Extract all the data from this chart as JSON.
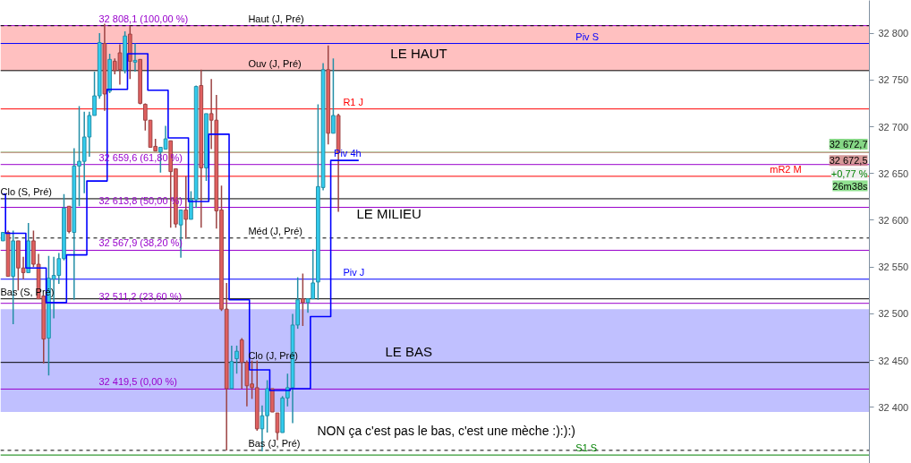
{
  "chart_data": {
    "type": "candlestick",
    "tick_labels": "y",
    "grid": false,
    "ylim": [
      32340,
      32835
    ],
    "yticks": [
      {
        "value": 32400,
        "label": "32 400"
      },
      {
        "value": 32450,
        "label": "32 450"
      },
      {
        "value": 32500,
        "label": "32 500"
      },
      {
        "value": 32550,
        "label": "32 550"
      },
      {
        "value": 32600,
        "label": "32 600"
      },
      {
        "value": 32650,
        "label": "32 650"
      },
      {
        "value": 32700,
        "label": "32 700"
      },
      {
        "value": 32750,
        "label": "32 750"
      },
      {
        "value": 32800,
        "label": "32 800"
      }
    ],
    "categories": [
      null,
      null,
      null,
      null,
      null,
      null,
      null,
      null,
      null,
      null,
      null,
      null,
      null,
      null,
      null,
      null,
      null,
      null,
      null,
      null,
      null,
      null,
      null,
      null,
      null,
      null,
      null,
      null,
      null,
      null,
      null,
      null,
      null,
      null,
      null,
      null,
      null,
      null,
      null,
      null,
      null,
      null,
      null,
      null,
      null,
      null,
      null,
      null,
      null,
      null,
      null,
      null,
      null,
      null,
      null,
      null,
      null,
      null,
      null,
      null,
      null,
      null,
      null,
      null,
      null,
      null,
      null,
      null,
      null,
      null,
      null,
      null,
      null,
      null,
      null,
      null,
      null,
      null,
      null,
      null,
      null,
      null,
      null,
      null,
      null,
      null,
      null,
      null,
      null,
      null,
      null,
      null,
      null,
      null,
      null,
      null,
      null,
      null,
      null,
      null,
      null,
      null,
      null,
      null,
      null,
      null,
      null,
      null,
      null,
      null,
      null,
      null,
      null,
      null,
      null,
      null,
      null,
      null,
      null,
      null,
      null,
      null,
      null,
      null,
      null,
      null,
      null,
      null,
      null,
      null,
      null,
      null,
      null,
      null,
      null,
      null,
      null,
      null,
      null,
      null,
      null,
      null,
      null,
      null,
      null,
      null,
      null,
      null,
      null,
      null,
      null,
      null,
      null,
      null,
      null,
      null,
      null,
      null,
      null,
      null,
      null,
      null,
      null,
      null,
      null,
      null,
      null,
      null,
      null,
      null,
      null
    ],
    "ohlc": [
      [
        32578,
        32587,
        32578,
        32587
      ],
      [
        32587,
        32589,
        32540,
        32540
      ],
      [
        32540,
        32589,
        32489,
        32578
      ],
      [
        32578,
        32578,
        32525,
        32549
      ],
      [
        32549,
        32561,
        32537,
        32544
      ],
      [
        32544,
        32597,
        32544,
        32578
      ],
      [
        32578,
        32589,
        32550,
        32553
      ],
      [
        32553,
        32564,
        32516,
        32516
      ],
      [
        32519,
        32519,
        32447,
        32473
      ],
      [
        32474,
        32562,
        32434,
        32538
      ],
      [
        32537,
        32561,
        32495,
        32541
      ],
      [
        32541,
        32565,
        32532,
        32559
      ],
      [
        32559,
        32628,
        32557,
        32613
      ],
      [
        32615,
        32615,
        32586,
        32588
      ],
      [
        32587,
        32677,
        32515,
        32658
      ],
      [
        32658,
        32722,
        32615,
        32663
      ],
      [
        32663,
        32716,
        32629,
        32689
      ],
      [
        32689,
        32716,
        32668,
        32712
      ],
      [
        32712,
        32759,
        32712,
        32733
      ],
      [
        32733,
        32800,
        32730,
        32790
      ],
      [
        32789,
        32810,
        32717,
        32735
      ],
      [
        32738,
        32778,
        32736,
        32772
      ],
      [
        32770,
        32773,
        32756,
        32760
      ],
      [
        32779,
        32788,
        32745,
        32761
      ],
      [
        32760,
        32802,
        32757,
        32797
      ],
      [
        32799,
        32808,
        32751,
        32770
      ],
      [
        32769,
        32789,
        32759,
        32771
      ],
      [
        32772,
        32772,
        32724,
        32725
      ],
      [
        32724,
        32725,
        32696,
        32707
      ],
      [
        32707,
        32707,
        32678,
        32678
      ],
      [
        32679,
        32687,
        32674,
        32674
      ],
      [
        32673,
        32678,
        32651,
        32678
      ],
      [
        32676,
        32701,
        32676,
        32687
      ],
      [
        32685,
        32685,
        32592,
        32652
      ],
      [
        32655,
        32655,
        32592,
        32596
      ],
      [
        32595,
        32611,
        32560,
        32611
      ],
      [
        32611,
        32647,
        32580,
        32601
      ],
      [
        32601,
        32631,
        32601,
        32622
      ],
      [
        32622,
        32744,
        32613,
        32743
      ],
      [
        32744,
        32761,
        32592,
        32656
      ],
      [
        32656,
        32714,
        32642,
        32714
      ],
      [
        32714,
        32751,
        32676,
        32707
      ],
      [
        32707,
        32734,
        32591,
        32610
      ],
      [
        32611,
        32637,
        32503,
        32505
      ],
      [
        32505,
        32533,
        32354,
        32420
      ],
      [
        32420,
        32466,
        32420,
        32449
      ],
      [
        32452,
        32466,
        32436,
        32460
      ],
      [
        32472,
        32474,
        32420,
        32448
      ],
      [
        32448,
        32450,
        32401,
        32423
      ],
      [
        32425,
        32450,
        32409,
        32421
      ],
      [
        32421,
        32450,
        32375,
        32377
      ],
      [
        32377,
        32402,
        32353,
        32391
      ],
      [
        32391,
        32429,
        32373,
        32420
      ],
      [
        32420,
        32420,
        32395,
        32395
      ],
      [
        32394,
        32394,
        32365,
        32373
      ],
      [
        32373,
        32412,
        32373,
        32410
      ],
      [
        32410,
        32436,
        32401,
        32421
      ],
      [
        32421,
        32500,
        32383,
        32488
      ],
      [
        32488,
        32539,
        32484,
        32515
      ],
      [
        32516,
        32543,
        32487,
        32512
      ],
      [
        32512,
        32516,
        32501,
        32516
      ],
      [
        32516,
        32569,
        32516,
        32533
      ],
      [
        32534,
        32724,
        32515,
        32636
      ],
      [
        32635,
        32768,
        32632,
        32761
      ],
      [
        32761,
        32787,
        32681,
        32693
      ],
      [
        32693,
        32773,
        32693,
        32712
      ],
      [
        32712,
        32714,
        32609,
        32672.5
      ],
      null,
      null,
      null,
      null,
      null,
      null,
      null,
      null,
      null,
      null,
      null,
      null,
      null,
      null,
      null,
      null,
      null,
      null,
      null,
      null,
      null,
      null,
      null,
      null,
      null,
      null,
      null,
      null,
      null,
      null,
      null,
      null,
      null,
      null,
      null,
      null,
      null,
      null,
      null,
      null,
      null,
      null,
      null,
      null,
      null,
      null,
      null,
      null,
      null,
      null,
      null,
      null,
      null,
      null,
      null,
      null,
      null,
      null,
      null,
      null,
      null,
      null,
      null,
      null,
      null,
      null,
      null,
      null,
      null,
      null,
      null,
      null,
      null,
      null,
      null,
      null,
      null,
      null,
      null,
      null,
      null,
      null,
      null,
      null,
      null,
      null,
      null,
      null,
      null,
      null,
      null,
      null,
      null,
      null,
      null,
      null,
      null,
      null,
      null,
      null,
      null,
      null,
      null,
      null
    ],
    "colors": [
      "#33ccee",
      "#e06060",
      "#33ccee",
      "#e06060",
      "#e06060",
      "#33ccee",
      "#e06060",
      "#e06060",
      "#e06060",
      "#33ccee",
      "#33ccee",
      "#33ccee",
      "#33ccee",
      "#e06060",
      "#33ccee",
      "#33ccee",
      "#33ccee",
      "#33ccee",
      "#33ccee",
      "#33ccee",
      "#e06060",
      "#33ccee",
      "#e06060",
      "#e06060",
      "#33ccee",
      "#e06060",
      "#33ccee",
      "#e06060",
      "#e06060",
      "#e06060",
      "#e06060",
      "#33ccee",
      "#33ccee",
      "#e06060",
      "#e06060",
      "#33ccee",
      "#e06060",
      "#33ccee",
      "#33ccee",
      "#e06060",
      "#33ccee",
      "#e06060",
      "#e06060",
      "#e06060",
      "#e06060",
      "#33ccee",
      "#33ccee",
      "#e06060",
      "#e06060",
      "#e06060",
      "#e06060",
      "#33ccee",
      "#33ccee",
      "#e06060",
      "#e06060",
      "#33ccee",
      "#33ccee",
      "#33ccee",
      "#33ccee",
      "#e06060",
      "#33ccee",
      "#33ccee",
      "#33ccee",
      "#33ccee",
      "#e06060",
      "#33ccee",
      "#e06060",
      null,
      null,
      null,
      null,
      null,
      null,
      null,
      null,
      null,
      null,
      null,
      null,
      null,
      null,
      null,
      null,
      null,
      null,
      null,
      null,
      null,
      null,
      null,
      null,
      null,
      null,
      null,
      null,
      null,
      null,
      null,
      null,
      null,
      null,
      null,
      null,
      null,
      null,
      null,
      null,
      null,
      null,
      null,
      null,
      null,
      null,
      null,
      null,
      null,
      null,
      null,
      null,
      null,
      null,
      null,
      null,
      null,
      null,
      null,
      null,
      null,
      null,
      null,
      null,
      null,
      null,
      null,
      null,
      null,
      null,
      null,
      null,
      null,
      null,
      null,
      null,
      null,
      null,
      null,
      null,
      null,
      null,
      null,
      null,
      null,
      null,
      null,
      null,
      null,
      null,
      null,
      null,
      null,
      null,
      null,
      null,
      null,
      null,
      null,
      null,
      null,
      null,
      null,
      null
    ],
    "series": [
      {
        "type": "step",
        "name": "Piv 4h",
        "color": "#0000ff",
        "values": [
          32628,
          32586,
          32586,
          32586,
          32586,
          32549,
          32549,
          32549,
          32549,
          32512,
          32512,
          32512,
          32512,
          32563,
          32563,
          32563,
          32563,
          32642,
          32642,
          32642,
          32642,
          32740,
          32740,
          32740,
          32740,
          32778,
          32778,
          32778,
          32778,
          32739,
          32739,
          32739,
          32739,
          32688,
          32688,
          32688,
          32688,
          32620,
          32620,
          32620,
          32620,
          32692,
          32692,
          32692,
          32692,
          32515,
          32515,
          32515,
          32515,
          32440,
          32440,
          32440,
          32440,
          32418,
          32418,
          32418,
          32418,
          32420,
          32420,
          32420,
          32420,
          32497,
          32497,
          32497,
          32497,
          32664,
          32664,
          32664,
          32664,
          32664,
          32664,
          null,
          null,
          null,
          null,
          null,
          null,
          null,
          null,
          null,
          null,
          null,
          null,
          null,
          null,
          null,
          null,
          null,
          null,
          null,
          null,
          null,
          null,
          null,
          null,
          null,
          null,
          null,
          null,
          null,
          null,
          null,
          null,
          null,
          null,
          null,
          null,
          null,
          null,
          null,
          null,
          null,
          null,
          null,
          null,
          null,
          null,
          null,
          null,
          null,
          null,
          null,
          null,
          null,
          null,
          null,
          null,
          null,
          null,
          null,
          null,
          null,
          null,
          null,
          null,
          null,
          null,
          null,
          null,
          null,
          null,
          null,
          null,
          null,
          null,
          null,
          null,
          null,
          null,
          null,
          null,
          null,
          null,
          null,
          null,
          null,
          null,
          null,
          null,
          null,
          null,
          null,
          null,
          null,
          null,
          null,
          null,
          null,
          null,
          null,
          null
        ]
      }
    ],
    "bands": [
      {
        "axis": "y",
        "from": 32760,
        "to": 32808,
        "label": "LE HAUT",
        "color": "#ffc0c0"
      },
      {
        "axis": "y",
        "from": 32395,
        "to": 32505,
        "label": "LE BAS",
        "color": "#c0c0ff"
      }
    ],
    "ref_lines": [
      {
        "axis": "y",
        "value": 32808.1,
        "label": "32 808,1 (100,00 %)",
        "color": "#9900cc"
      },
      {
        "axis": "y",
        "value": 32659.6,
        "label": "32 659,6 (61,80 %)",
        "color": "#9900cc"
      },
      {
        "axis": "y",
        "value": 32613.8,
        "label": "32 613,8 (50,00 %)",
        "color": "#9900cc"
      },
      {
        "axis": "y",
        "value": 32567.9,
        "label": "32 567,9 (38,20 %)",
        "color": "#9900cc"
      },
      {
        "axis": "y",
        "value": 32511.2,
        "label": "32 511,2 (23,60 %)",
        "color": "#9900cc"
      },
      {
        "axis": "y",
        "value": 32419.5,
        "label": "32 419,5 (0,00 %)",
        "color": "#9900cc"
      },
      {
        "axis": "y",
        "value": 32808,
        "label": "Haut (J, Pré)",
        "color": "#000000",
        "line_style": "dashed"
      },
      {
        "axis": "y",
        "value": 32760,
        "label": "Ouv (J, Pré)",
        "color": "#000000"
      },
      {
        "axis": "y",
        "value": 32719,
        "label": "R1 J",
        "color": "#ff0000"
      },
      {
        "axis": "y",
        "value": 32789,
        "label": "Piv S",
        "color": "#0000ff"
      },
      {
        "axis": "y",
        "value": 32581,
        "label": "Méd (J, Pré)",
        "color": "#000000",
        "line_style": "dashed"
      },
      {
        "axis": "y",
        "value": 32537,
        "label": "Piv J",
        "color": "#0000ff"
      },
      {
        "axis": "y",
        "value": 32623,
        "label": "Clo (S, Pré)",
        "color": "#000000"
      },
      {
        "axis": "y",
        "value": 32516,
        "label": "Bas (S, Pré)",
        "color": "#000000"
      },
      {
        "axis": "y",
        "value": 32448,
        "label": "Clo (J, Pré)",
        "color": "#000000"
      },
      {
        "axis": "y",
        "value": 32354,
        "label": "Bas (J, Pré)",
        "color": "#000000",
        "line_style": "dashed"
      },
      {
        "axis": "y",
        "value": 32349,
        "label": "S1 S",
        "color": "#008000"
      },
      {
        "axis": "y",
        "value": 32647,
        "label": "mR2 M",
        "color": "#ff0000"
      },
      {
        "axis": "y",
        "value": 32672.7,
        "label": "32 672,7",
        "color": "#66cc66"
      },
      {
        "axis": "y",
        "value": 32672.5,
        "label": "32 672,5",
        "color": "#cc8080"
      }
    ],
    "annotations": [
      "LE MILIEU",
      "NON ça c'est pas le bas, c'est une mèche :):):)",
      "+0,77 %",
      "26m38s"
    ]
  }
}
